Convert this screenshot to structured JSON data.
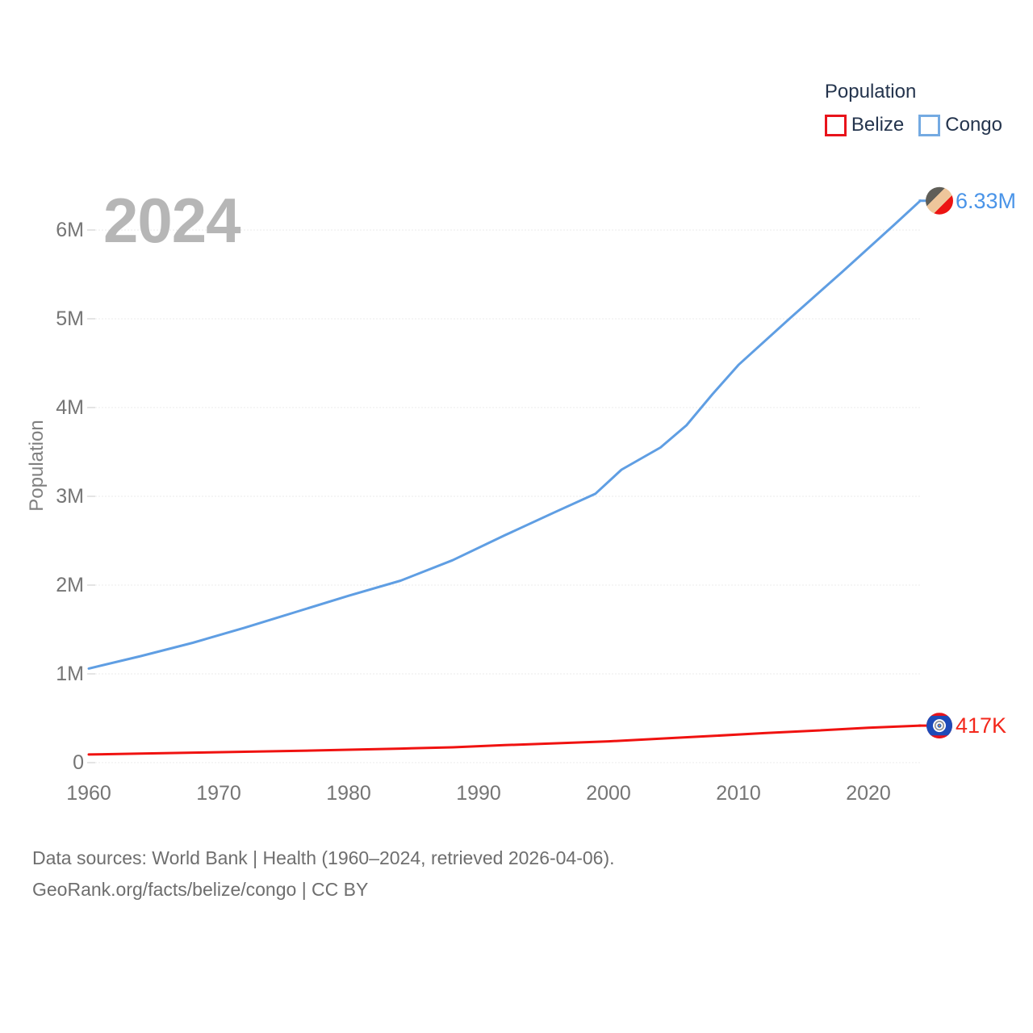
{
  "page": {
    "background": "#ffffff"
  },
  "legend": {
    "title": "Population",
    "position": "top-right"
  },
  "footer": {
    "line1": "Data sources: World Bank | Health (1960–2024, retrieved 2026-04-06).",
    "line2": "GeoRank.org/facts/belize/congo | CC BY"
  },
  "chart_data": {
    "type": "line",
    "title": "",
    "ylabel": "Population",
    "xlabel": "",
    "watermark": "2024",
    "grid": true,
    "legend_position": "top-right",
    "x_axis": {
      "ticks": [
        1960,
        1970,
        1980,
        1990,
        2000,
        2010,
        2020
      ],
      "range": [
        1960,
        2024
      ]
    },
    "y_axis": {
      "unit": "persons (millions)",
      "range": [
        0,
        6.6
      ],
      "ticks": [
        {
          "label": "0",
          "value": 0
        },
        {
          "label": "1M",
          "value": 1
        },
        {
          "label": "2M",
          "value": 2
        },
        {
          "label": "3M",
          "value": 3
        },
        {
          "label": "4M",
          "value": 4
        },
        {
          "label": "5M",
          "value": 5
        },
        {
          "label": "6M",
          "value": 6
        }
      ]
    },
    "gridline_color": "#ebebeb",
    "tick_color": "#c9c9c9",
    "series": [
      {
        "name": "Congo",
        "color": "#5f9ee3",
        "legend_box_color": "#74aae2",
        "end_label": "6.33M",
        "end_label_color": "#4a94e8",
        "marker": {
          "type": "congo-flag",
          "stripe_colors": [
            "#5f5e58",
            "#eec69b",
            "#ec1412"
          ]
        },
        "points_millions": [
          [
            1960,
            1.06
          ],
          [
            1964,
            1.2
          ],
          [
            1968,
            1.35
          ],
          [
            1972,
            1.52
          ],
          [
            1976,
            1.7
          ],
          [
            1980,
            1.88
          ],
          [
            1984,
            2.05
          ],
          [
            1988,
            2.28
          ],
          [
            1992,
            2.56
          ],
          [
            1996,
            2.83
          ],
          [
            1999,
            3.03
          ],
          [
            2001,
            3.3
          ],
          [
            2004,
            3.55
          ],
          [
            2006,
            3.8
          ],
          [
            2008,
            4.15
          ],
          [
            2010,
            4.48
          ],
          [
            2014,
            5.01
          ],
          [
            2018,
            5.53
          ],
          [
            2022,
            6.06
          ],
          [
            2024,
            6.33
          ]
        ]
      },
      {
        "name": "Belize",
        "color": "#f01210",
        "legend_box_color": "#e8131b",
        "end_label": "417K",
        "end_label_color": "#f3281c",
        "marker": {
          "type": "belize-flag",
          "colors": {
            "field": "#1e4bb8",
            "stripe": "#e8131b",
            "disc": "#ffffff",
            "ring": "#8f8f8f",
            "center_outer": "#2f6bc4",
            "center_inner": "#d8883f"
          }
        },
        "points_millions": [
          [
            1960,
            0.092
          ],
          [
            1964,
            0.103
          ],
          [
            1968,
            0.113
          ],
          [
            1972,
            0.123
          ],
          [
            1976,
            0.133
          ],
          [
            1980,
            0.145
          ],
          [
            1984,
            0.158
          ],
          [
            1988,
            0.173
          ],
          [
            1992,
            0.197
          ],
          [
            1996,
            0.218
          ],
          [
            2000,
            0.24
          ],
          [
            2004,
            0.27
          ],
          [
            2008,
            0.301
          ],
          [
            2012,
            0.333
          ],
          [
            2016,
            0.361
          ],
          [
            2020,
            0.394
          ],
          [
            2024,
            0.417
          ]
        ]
      }
    ]
  }
}
